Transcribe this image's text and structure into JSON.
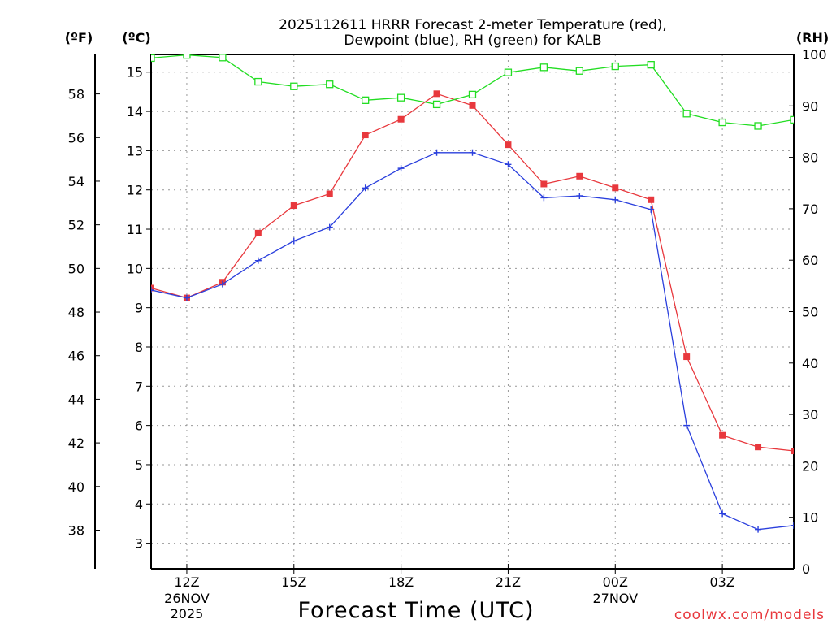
{
  "chart_data": {
    "type": "line",
    "title_line1": "2025112611 HRRR Forecast 2-meter Temperature (red),",
    "title_line2": "Dewpoint (blue), RH (green) for KALB",
    "xlabel": "Forecast Time (UTC)",
    "left_outer_unit": "(ºF)",
    "left_inner_unit": "(ºC)",
    "right_unit": "(RH)",
    "credit": "coolwx.com/models",
    "x_range_hours": [
      11,
      29
    ],
    "x_ticks": [
      {
        "hour": 12,
        "line1": "12Z",
        "line2": "26NOV",
        "line3": "2025"
      },
      {
        "hour": 15,
        "line1": "15Z",
        "line2": "",
        "line3": ""
      },
      {
        "hour": 18,
        "line1": "18Z",
        "line2": "",
        "line3": ""
      },
      {
        "hour": 21,
        "line1": "21Z",
        "line2": "",
        "line3": ""
      },
      {
        "hour": 24,
        "line1": "00Z",
        "line2": "27NOV",
        "line3": ""
      },
      {
        "hour": 27,
        "line1": "03Z",
        "line2": "",
        "line3": ""
      }
    ],
    "celsius_range": [
      2.35,
      15.45
    ],
    "celsius_ticks": [
      "3",
      "4",
      "5",
      "6",
      "7",
      "8",
      "9",
      "10",
      "11",
      "12",
      "13",
      "14",
      "15"
    ],
    "fahrenheit_ticks": [
      "38",
      "40",
      "42",
      "44",
      "46",
      "48",
      "50",
      "52",
      "54",
      "56",
      "58"
    ],
    "rh_range": [
      0,
      100
    ],
    "rh_ticks": [
      "0",
      "10",
      "20",
      "30",
      "40",
      "50",
      "60",
      "70",
      "80",
      "90",
      "100"
    ],
    "x_hours": [
      11,
      12,
      13,
      14,
      15,
      16,
      17,
      18,
      19,
      20,
      21,
      22,
      23,
      24,
      25,
      26,
      27,
      28,
      29
    ],
    "series": [
      {
        "name": "Temperature",
        "axis": "C",
        "color": "#e8383d",
        "marker": "filled-square",
        "values": [
          9.5,
          9.25,
          9.65,
          10.9,
          11.6,
          11.9,
          13.4,
          13.8,
          14.45,
          14.15,
          13.15,
          12.15,
          12.35,
          12.05,
          11.75,
          7.75,
          5.75,
          5.45,
          5.35
        ]
      },
      {
        "name": "Dewpoint",
        "axis": "C",
        "color": "#2a3fdd",
        "marker": "plus",
        "values": [
          9.45,
          9.25,
          9.6,
          10.2,
          10.7,
          11.05,
          12.05,
          12.55,
          12.95,
          12.95,
          12.65,
          11.8,
          11.85,
          11.75,
          11.5,
          6.0,
          3.75,
          3.35,
          3.45
        ]
      },
      {
        "name": "RH",
        "axis": "RH",
        "color": "#22dd22",
        "marker": "open-square",
        "values": [
          99.3,
          99.9,
          99.4,
          94.7,
          93.8,
          94.2,
          91.1,
          91.6,
          90.3,
          92.2,
          96.5,
          97.5,
          96.8,
          97.7,
          98.0,
          88.5,
          86.8,
          86.1,
          87.3
        ]
      }
    ]
  }
}
